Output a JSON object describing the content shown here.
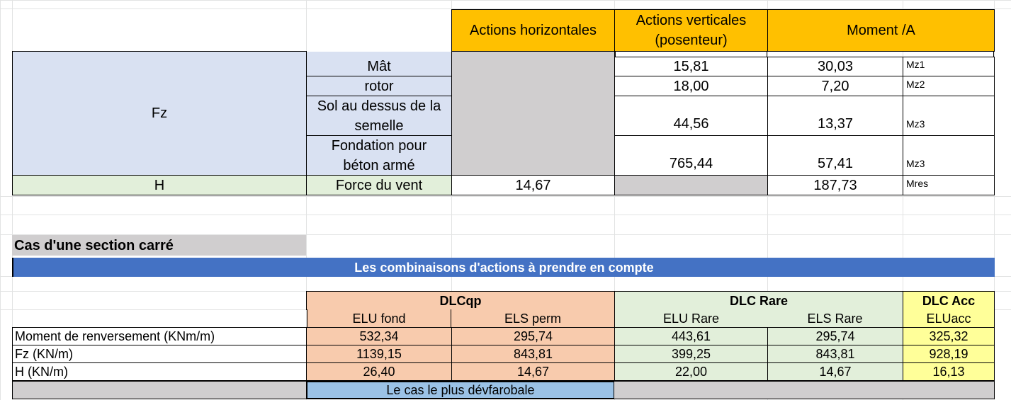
{
  "table1": {
    "headers": {
      "horizontal": "Actions horizontales",
      "vertical": "Actions verticales (posenteur)",
      "moment": "Moment /A"
    },
    "group_label": "Fz",
    "rows": [
      {
        "label": "Mât",
        "vertical": "15,81",
        "moment": "30,03",
        "moment_tag": "Mz1"
      },
      {
        "label": "rotor",
        "vertical": "18,00",
        "moment": "7,20",
        "moment_tag": "Mz2"
      },
      {
        "label": "Sol au dessus de la semelle",
        "vertical": "44,56",
        "moment": "13,37",
        "moment_tag": "Mz3"
      },
      {
        "label": "Fondation pour béton armé",
        "vertical": "765,44",
        "moment": "57,41",
        "moment_tag": "Mz3"
      }
    ],
    "h_row": {
      "group": "H",
      "label": "Force du vent",
      "horizontal": "14,67",
      "moment": "187,73",
      "moment_tag": "Mres"
    }
  },
  "section_title": "Cas d'une section carré",
  "banner": "Les combinaisons d'actions à prendre en compte",
  "table2": {
    "groups": {
      "dlcqp": "DLCqp",
      "dlc_rare": "DLC Rare",
      "dlc_acc": "DLC Acc"
    },
    "subheaders": [
      "ELU fond",
      "ELS perm",
      "ELU Rare",
      "ELS Rare",
      "ELUacc"
    ],
    "rows": [
      {
        "label": "Moment de renversement (KNm/m)",
        "values": [
          "532,34",
          "295,74",
          "443,61",
          "295,74",
          "325,32"
        ]
      },
      {
        "label": "Fz (KN/m)",
        "values": [
          "1139,15",
          "843,81",
          "399,25",
          "843,81",
          "928,19"
        ]
      },
      {
        "label": "H (KN/m)",
        "values": [
          "26,40",
          "14,67",
          "22,00",
          "14,67",
          "16,13"
        ]
      }
    ],
    "footer": "Le cas le plus dévfarobale"
  }
}
